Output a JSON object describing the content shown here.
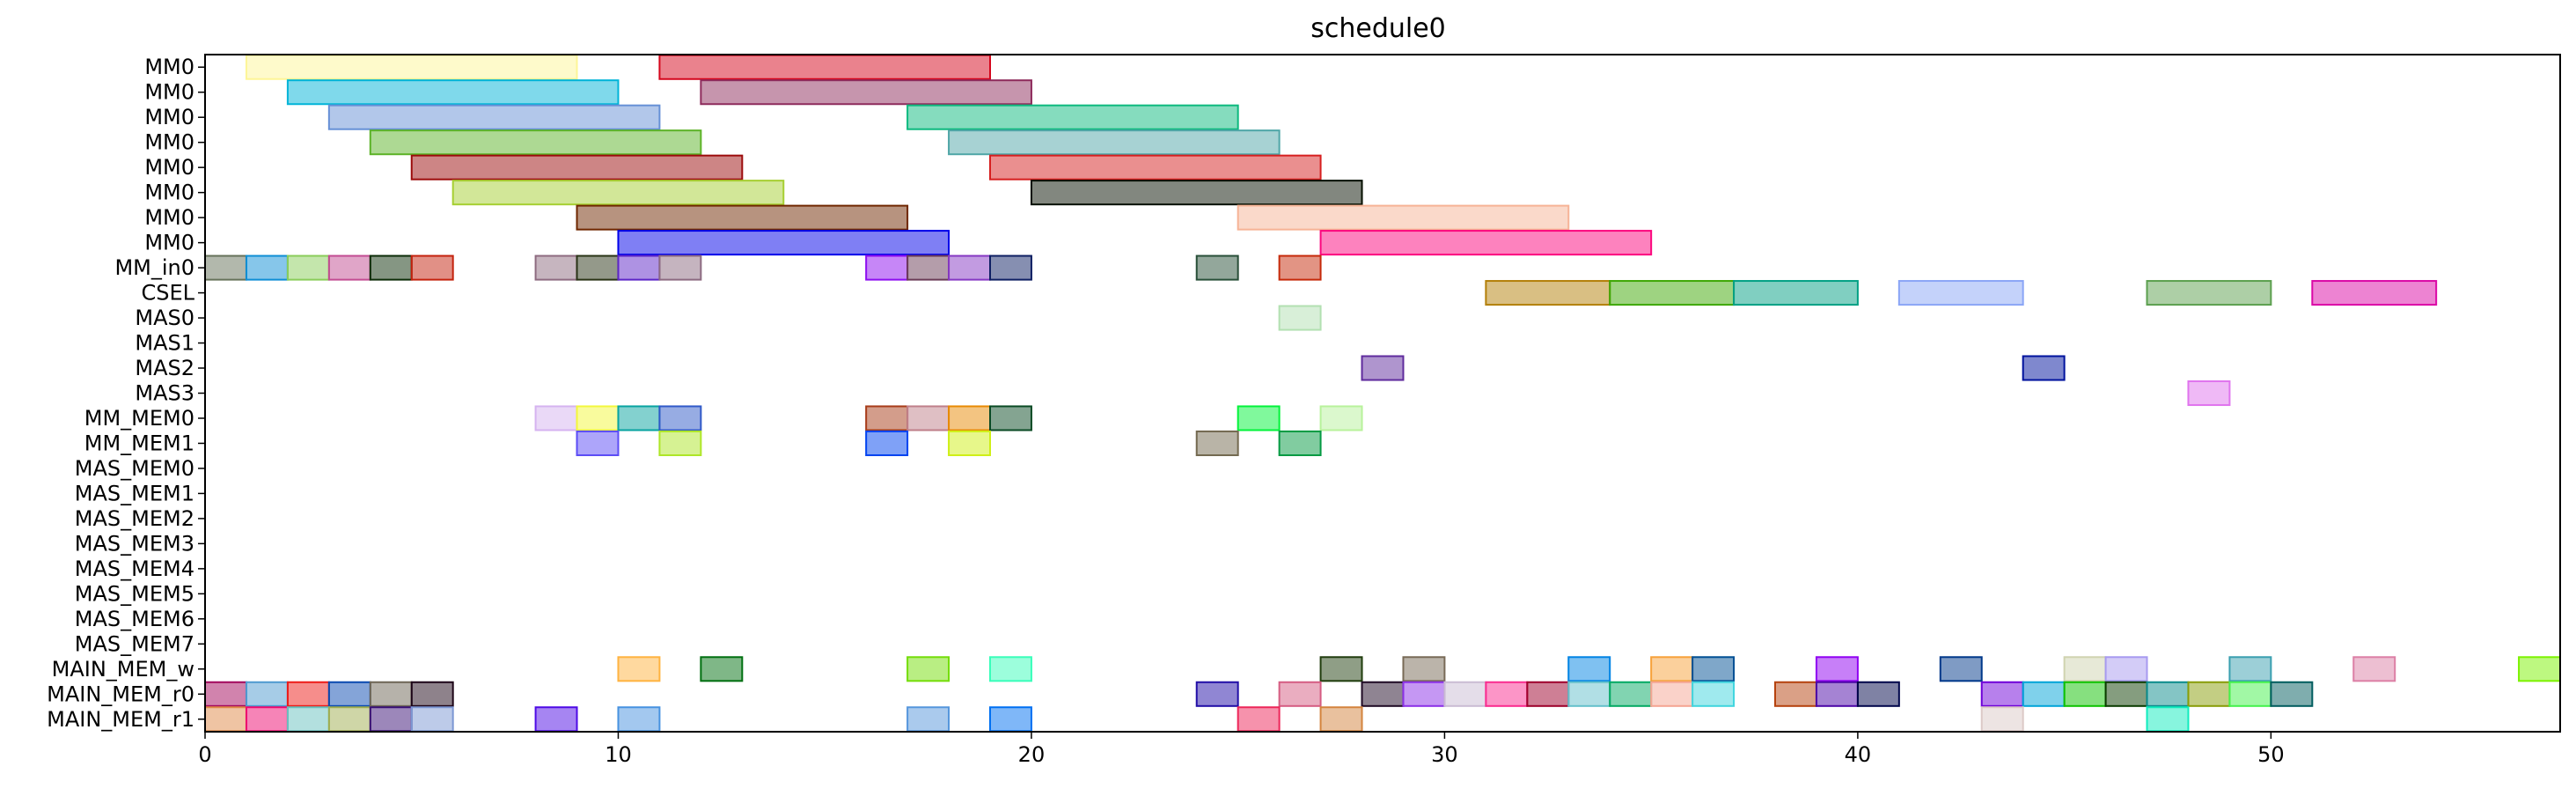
{
  "chart_data": {
    "type": "bar",
    "subtype": "gantt",
    "title": "schedule0",
    "xlabel": "",
    "ylabel": "",
    "xlim": [
      0,
      57
    ],
    "x_ticks": [
      0,
      10,
      20,
      30,
      40,
      50
    ],
    "grid": false,
    "legend": "none",
    "bar_alpha": 0.5,
    "rows": [
      "MM0",
      "MM0",
      "MM0",
      "MM0",
      "MM0",
      "MM0",
      "MM0",
      "MM0",
      "MM_in0",
      "CSEL",
      "MAS0",
      "MAS1",
      "MAS2",
      "MAS3",
      "MM_MEM0",
      "MM_MEM1",
      "MAS_MEM0",
      "MAS_MEM1",
      "MAS_MEM2",
      "MAS_MEM3",
      "MAS_MEM4",
      "MAS_MEM5",
      "MAS_MEM6",
      "MAS_MEM7",
      "MAIN_MEM_w",
      "MAIN_MEM_r0",
      "MAIN_MEM_r1"
    ],
    "tasks": [
      {
        "row": 0,
        "start": 1,
        "end": 9,
        "color": "#fdf597"
      },
      {
        "row": 0,
        "start": 11,
        "end": 19,
        "color": "#d5061c"
      },
      {
        "row": 1,
        "start": 2,
        "end": 10,
        "color": "#00b4d8"
      },
      {
        "row": 1,
        "start": 12,
        "end": 20,
        "color": "#8e2b5c"
      },
      {
        "row": 2,
        "start": 3,
        "end": 11,
        "color": "#6690d6"
      },
      {
        "row": 2,
        "start": 17,
        "end": 25,
        "color": "#0cb97e"
      },
      {
        "row": 3,
        "start": 4,
        "end": 12,
        "color": "#5cb327"
      },
      {
        "row": 3,
        "start": 18,
        "end": 26,
        "color": "#4fa6a7"
      },
      {
        "row": 4,
        "start": 5,
        "end": 13,
        "color": "#9c0b0b"
      },
      {
        "row": 4,
        "start": 19,
        "end": 27,
        "color": "#d61f1f"
      },
      {
        "row": 5,
        "start": 6,
        "end": 14,
        "color": "#a6cf32"
      },
      {
        "row": 5,
        "start": 20,
        "end": 28,
        "color": "#050f00"
      },
      {
        "row": 6,
        "start": 9,
        "end": 17,
        "color": "#6f2700"
      },
      {
        "row": 6,
        "start": 25,
        "end": 33,
        "color": "#f6b396"
      },
      {
        "row": 7,
        "start": 10,
        "end": 18,
        "color": "#0000ea"
      },
      {
        "row": 7,
        "start": 27,
        "end": 35,
        "color": "#fc067e"
      },
      {
        "row": 8,
        "start": 0,
        "end": 1,
        "color": "#66725a"
      },
      {
        "row": 8,
        "start": 1,
        "end": 2,
        "color": "#0e8ed5"
      },
      {
        "row": 8,
        "start": 2,
        "end": 3,
        "color": "#8acd5a"
      },
      {
        "row": 8,
        "start": 3,
        "end": 4,
        "color": "#c24c92"
      },
      {
        "row": 8,
        "start": 4,
        "end": 5,
        "color": "#0c2d08"
      },
      {
        "row": 8,
        "start": 5,
        "end": 6,
        "color": "#c4220d"
      },
      {
        "row": 8,
        "start": 8,
        "end": 9,
        "color": "#8e6b80"
      },
      {
        "row": 8,
        "start": 9,
        "end": 10,
        "color": "#2a3416"
      },
      {
        "row": 8,
        "start": 10,
        "end": 11,
        "color": "#5d25c7"
      },
      {
        "row": 8,
        "start": 11,
        "end": 12,
        "color": "#8c6a80"
      },
      {
        "row": 8,
        "start": 16,
        "end": 17,
        "color": "#8d0df0"
      },
      {
        "row": 8,
        "start": 17,
        "end": 18,
        "color": "#6a3b56"
      },
      {
        "row": 8,
        "start": 18,
        "end": 19,
        "color": "#8638c3"
      },
      {
        "row": 8,
        "start": 19,
        "end": 20,
        "color": "#0e1f63"
      },
      {
        "row": 8,
        "start": 24,
        "end": 25,
        "color": "#284f38"
      },
      {
        "row": 8,
        "start": 26,
        "end": 27,
        "color": "#c5290a"
      },
      {
        "row": 9,
        "start": 31,
        "end": 34,
        "color": "#b37f08"
      },
      {
        "row": 9,
        "start": 34,
        "end": 37,
        "color": "#3da704"
      },
      {
        "row": 9,
        "start": 37,
        "end": 40,
        "color": "#02a084"
      },
      {
        "row": 9,
        "start": 41,
        "end": 44,
        "color": "#8aa5f6"
      },
      {
        "row": 9,
        "start": 47,
        "end": 50,
        "color": "#5b9f4e"
      },
      {
        "row": 9,
        "start": 51,
        "end": 54,
        "color": "#db08a6"
      },
      {
        "row": 10,
        "start": 26,
        "end": 27,
        "color": "#b2e0b1"
      },
      {
        "row": 12,
        "start": 28,
        "end": 29,
        "color": "#5f2b9d"
      },
      {
        "row": 12,
        "start": 44,
        "end": 45,
        "color": "#00129d"
      },
      {
        "row": 13,
        "start": 48,
        "end": 49,
        "color": "#e074ee"
      },
      {
        "row": 14,
        "start": 8,
        "end": 9,
        "color": "#d5b3f0"
      },
      {
        "row": 14,
        "start": 9,
        "end": 10,
        "color": "#f3f73c"
      },
      {
        "row": 14,
        "start": 10,
        "end": 11,
        "color": "#08a3a0"
      },
      {
        "row": 14,
        "start": 11,
        "end": 12,
        "color": "#3059c8"
      },
      {
        "row": 14,
        "start": 16,
        "end": 17,
        "color": "#a73b18"
      },
      {
        "row": 14,
        "start": 17,
        "end": 18,
        "color": "#bf7f89"
      },
      {
        "row": 14,
        "start": 18,
        "end": 19,
        "color": "#e88a04"
      },
      {
        "row": 14,
        "start": 19,
        "end": 20,
        "color": "#0a4a24"
      },
      {
        "row": 14,
        "start": 25,
        "end": 26,
        "color": "#02f33a"
      },
      {
        "row": 14,
        "start": 27,
        "end": 28,
        "color": "#b8f29b"
      },
      {
        "row": 15,
        "start": 9,
        "end": 10,
        "color": "#5c4cf5"
      },
      {
        "row": 15,
        "start": 11,
        "end": 12,
        "color": "#aee627"
      },
      {
        "row": 15,
        "start": 16,
        "end": 17,
        "color": "#0043f0"
      },
      {
        "row": 15,
        "start": 18,
        "end": 19,
        "color": "#cfef16"
      },
      {
        "row": 15,
        "start": 24,
        "end": 25,
        "color": "#736950"
      },
      {
        "row": 15,
        "start": 26,
        "end": 27,
        "color": "#049a42"
      },
      {
        "row": 24,
        "start": 10,
        "end": 11,
        "color": "#ffb340"
      },
      {
        "row": 24,
        "start": 12,
        "end": 13,
        "color": "#006f10"
      },
      {
        "row": 24,
        "start": 17,
        "end": 18,
        "color": "#73dd08"
      },
      {
        "row": 24,
        "start": 19,
        "end": 20,
        "color": "#39feba"
      },
      {
        "row": 24,
        "start": 27,
        "end": 28,
        "color": "#203d0d"
      },
      {
        "row": 24,
        "start": 29,
        "end": 30,
        "color": "#786a56"
      },
      {
        "row": 24,
        "start": 33,
        "end": 34,
        "color": "#0083e4"
      },
      {
        "row": 24,
        "start": 35,
        "end": 36,
        "color": "#f7a13a"
      },
      {
        "row": 24,
        "start": 36,
        "end": 37,
        "color": "#004f94"
      },
      {
        "row": 24,
        "start": 39,
        "end": 40,
        "color": "#9000f2"
      },
      {
        "row": 24,
        "start": 42,
        "end": 43,
        "color": "#00388a"
      },
      {
        "row": 24,
        "start": 45,
        "end": 46,
        "color": "#d0d3b0"
      },
      {
        "row": 24,
        "start": 46,
        "end": 47,
        "color": "#a79af0"
      },
      {
        "row": 24,
        "start": 49,
        "end": 50,
        "color": "#3a9fb0"
      },
      {
        "row": 24,
        "start": 52,
        "end": 53,
        "color": "#dc7fa5"
      },
      {
        "row": 24,
        "start": 56,
        "end": 57,
        "color": "#7cf201"
      },
      {
        "row": 25,
        "start": 0,
        "end": 1,
        "color": "#a3075c"
      },
      {
        "row": 25,
        "start": 1,
        "end": 2,
        "color": "#4e9ad0"
      },
      {
        "row": 25,
        "start": 2,
        "end": 3,
        "color": "#ee1b18"
      },
      {
        "row": 25,
        "start": 3,
        "end": 4,
        "color": "#0a4ab1"
      },
      {
        "row": 25,
        "start": 4,
        "end": 5,
        "color": "#6e6656"
      },
      {
        "row": 25,
        "start": 5,
        "end": 6,
        "color": "#1d0518"
      },
      {
        "row": 25,
        "start": 24,
        "end": 25,
        "color": "#210ea7"
      },
      {
        "row": 25,
        "start": 26,
        "end": 27,
        "color": "#d55c82"
      },
      {
        "row": 25,
        "start": 28,
        "end": 29,
        "color": "#1f0a25"
      },
      {
        "row": 25,
        "start": 29,
        "end": 30,
        "color": "#8b30e7"
      },
      {
        "row": 25,
        "start": 30,
        "end": 31,
        "color": "#cabbd3"
      },
      {
        "row": 25,
        "start": 31,
        "end": 32,
        "color": "#fa2b8f"
      },
      {
        "row": 25,
        "start": 32,
        "end": 33,
        "color": "#9e002b"
      },
      {
        "row": 25,
        "start": 33,
        "end": 34,
        "color": "#64c0cb"
      },
      {
        "row": 25,
        "start": 34,
        "end": 35,
        "color": "#03a963"
      },
      {
        "row": 25,
        "start": 35,
        "end": 36,
        "color": "#f5a593"
      },
      {
        "row": 25,
        "start": 36,
        "end": 37,
        "color": "#40d5de"
      },
      {
        "row": 25,
        "start": 38,
        "end": 39,
        "color": "#b5420e"
      },
      {
        "row": 25,
        "start": 39,
        "end": 40,
        "color": "#4c07a7"
      },
      {
        "row": 25,
        "start": 40,
        "end": 41,
        "color": "#00064a"
      },
      {
        "row": 25,
        "start": 43,
        "end": 44,
        "color": "#6f01d9"
      },
      {
        "row": 25,
        "start": 44,
        "end": 45,
        "color": "#00a4d8"
      },
      {
        "row": 25,
        "start": 45,
        "end": 46,
        "color": "#0ec200"
      },
      {
        "row": 25,
        "start": 46,
        "end": 47,
        "color": "#0b3c00"
      },
      {
        "row": 25,
        "start": 47,
        "end": 48,
        "color": "#0a8b8c"
      },
      {
        "row": 25,
        "start": 48,
        "end": 49,
        "color": "#889d08"
      },
      {
        "row": 25,
        "start": 49,
        "end": 50,
        "color": "#44f24c"
      },
      {
        "row": 25,
        "start": 50,
        "end": 51,
        "color": "#005c5e"
      },
      {
        "row": 26,
        "start": 0,
        "end": 1,
        "color": "#df8a48"
      },
      {
        "row": 26,
        "start": 1,
        "end": 2,
        "color": "#ed0a6f"
      },
      {
        "row": 26,
        "start": 2,
        "end": 3,
        "color": "#68c1bf"
      },
      {
        "row": 26,
        "start": 3,
        "end": 4,
        "color": "#a0ad50"
      },
      {
        "row": 26,
        "start": 4,
        "end": 5,
        "color": "#390f76"
      },
      {
        "row": 26,
        "start": 5,
        "end": 6,
        "color": "#7c97d3"
      },
      {
        "row": 26,
        "start": 8,
        "end": 9,
        "color": "#4e0be6"
      },
      {
        "row": 26,
        "start": 10,
        "end": 11,
        "color": "#4792e0"
      },
      {
        "row": 26,
        "start": 17,
        "end": 18,
        "color": "#5596dc"
      },
      {
        "row": 26,
        "start": 19,
        "end": 20,
        "color": "#0070f2"
      },
      {
        "row": 26,
        "start": 25,
        "end": 26,
        "color": "#ed2659"
      },
      {
        "row": 26,
        "start": 27,
        "end": 28,
        "color": "#d4843e"
      },
      {
        "row": 26,
        "start": 43,
        "end": 44,
        "color": "#dcc9c7"
      },
      {
        "row": 26,
        "start": 47,
        "end": 48,
        "color": "#10ecbe"
      }
    ]
  }
}
